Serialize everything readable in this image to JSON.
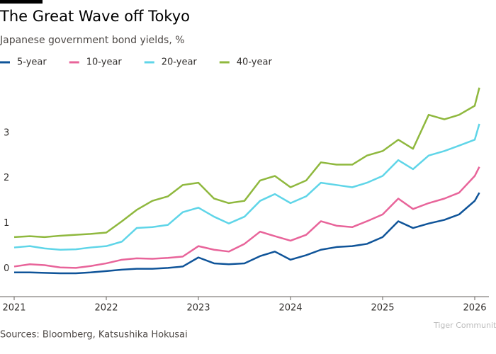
{
  "chart_data": {
    "type": "line",
    "title": "The Great Wave off Tokyo",
    "subtitle": "Japanese government bond yields, %",
    "source": "Sources: Bloomberg, Katsushika Hokusai",
    "watermark": "Tiger Community",
    "x": [
      2021.0,
      2021.17,
      2021.33,
      2021.5,
      2021.67,
      2021.83,
      2022.0,
      2022.17,
      2022.33,
      2022.5,
      2022.67,
      2022.83,
      2023.0,
      2023.17,
      2023.33,
      2023.5,
      2023.67,
      2023.83,
      2024.0,
      2024.17,
      2024.33,
      2024.5,
      2024.67,
      2024.83,
      2025.0,
      2025.17,
      2025.33,
      2025.5,
      2025.67,
      2025.83,
      2026.0,
      2026.05
    ],
    "series": [
      {
        "name": "5-year",
        "color": "#0f5499",
        "values": [
          -0.08,
          -0.08,
          -0.09,
          -0.1,
          -0.1,
          -0.08,
          -0.05,
          -0.02,
          0.0,
          0.0,
          0.02,
          0.05,
          0.25,
          0.12,
          0.1,
          0.12,
          0.28,
          0.38,
          0.2,
          0.3,
          0.42,
          0.48,
          0.5,
          0.55,
          0.7,
          1.05,
          0.9,
          1.0,
          1.08,
          1.2,
          1.5,
          1.68
        ]
      },
      {
        "name": "10-year",
        "color": "#e8649a",
        "values": [
          0.05,
          0.1,
          0.08,
          0.03,
          0.02,
          0.06,
          0.12,
          0.2,
          0.23,
          0.22,
          0.24,
          0.27,
          0.5,
          0.42,
          0.38,
          0.55,
          0.82,
          0.72,
          0.62,
          0.75,
          1.05,
          0.95,
          0.92,
          1.05,
          1.2,
          1.55,
          1.32,
          1.45,
          1.55,
          1.68,
          2.05,
          2.25
        ]
      },
      {
        "name": "20-year",
        "color": "#5fd5e8",
        "values": [
          0.47,
          0.5,
          0.45,
          0.42,
          0.43,
          0.47,
          0.5,
          0.6,
          0.9,
          0.92,
          0.97,
          1.25,
          1.35,
          1.15,
          1.0,
          1.15,
          1.5,
          1.65,
          1.45,
          1.6,
          1.9,
          1.85,
          1.8,
          1.9,
          2.05,
          2.4,
          2.2,
          2.5,
          2.6,
          2.72,
          2.85,
          3.2
        ]
      },
      {
        "name": "40-year",
        "color": "#8fb83e",
        "values": [
          0.7,
          0.72,
          0.7,
          0.73,
          0.75,
          0.77,
          0.8,
          1.05,
          1.3,
          1.5,
          1.6,
          1.85,
          1.9,
          1.55,
          1.45,
          1.5,
          1.95,
          2.05,
          1.8,
          1.95,
          2.35,
          2.3,
          2.3,
          2.5,
          2.6,
          2.85,
          2.65,
          3.4,
          3.3,
          3.4,
          3.6,
          4.0
        ]
      }
    ],
    "xlim": [
      2021,
      2026
    ],
    "xticks": [
      2021,
      2022,
      2023,
      2024,
      2025,
      2026
    ],
    "ylim": [
      -0.6,
      4.2
    ],
    "yticks": [
      0,
      1,
      2,
      3
    ],
    "grid": false
  }
}
